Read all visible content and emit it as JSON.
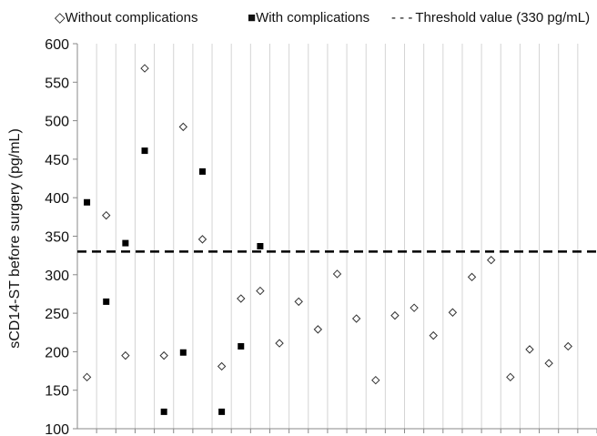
{
  "chart_data": {
    "type": "scatter",
    "title": "",
    "xlabel": "",
    "ylabel": "sCD14-ST before surgery (pg/mL)",
    "ylim": [
      100,
      600
    ],
    "y_ticks": [
      100,
      150,
      200,
      250,
      300,
      350,
      400,
      450,
      500,
      550,
      600
    ],
    "x_slots": 27,
    "grid": "vertical",
    "legend_position": "top",
    "legend": [
      {
        "label": "Without complications",
        "marker": "diamond-open",
        "prefix": "◇"
      },
      {
        "label": "With complications",
        "marker": "square-filled",
        "prefix": "■"
      },
      {
        "label": "Threshold value (330 pg/mL)",
        "marker": "dashed-line",
        "prefix": "- - -"
      }
    ],
    "threshold": {
      "value": 330
    },
    "series": [
      {
        "name": "Without complications",
        "marker": "diamond-open",
        "points": [
          {
            "x": 1,
            "y": 167
          },
          {
            "x": 2,
            "y": 377
          },
          {
            "x": 3,
            "y": 195
          },
          {
            "x": 4,
            "y": 568
          },
          {
            "x": 5,
            "y": 195
          },
          {
            "x": 6,
            "y": 492
          },
          {
            "x": 7,
            "y": 346
          },
          {
            "x": 8,
            "y": 181
          },
          {
            "x": 9,
            "y": 269
          },
          {
            "x": 10,
            "y": 279
          },
          {
            "x": 11,
            "y": 211
          },
          {
            "x": 12,
            "y": 265
          },
          {
            "x": 13,
            "y": 229
          },
          {
            "x": 14,
            "y": 301
          },
          {
            "x": 15,
            "y": 243
          },
          {
            "x": 16,
            "y": 163
          },
          {
            "x": 17,
            "y": 247
          },
          {
            "x": 18,
            "y": 257
          },
          {
            "x": 19,
            "y": 221
          },
          {
            "x": 20,
            "y": 251
          },
          {
            "x": 21,
            "y": 297
          },
          {
            "x": 22,
            "y": 319
          },
          {
            "x": 23,
            "y": 167
          },
          {
            "x": 24,
            "y": 203
          },
          {
            "x": 25,
            "y": 185
          },
          {
            "x": 26,
            "y": 207
          }
        ]
      },
      {
        "name": "With complications",
        "marker": "square-filled",
        "points": [
          {
            "x": 1,
            "y": 394
          },
          {
            "x": 2,
            "y": 265
          },
          {
            "x": 3,
            "y": 341
          },
          {
            "x": 4,
            "y": 461
          },
          {
            "x": 5,
            "y": 122
          },
          {
            "x": 6,
            "y": 199
          },
          {
            "x": 7,
            "y": 434
          },
          {
            "x": 8,
            "y": 122
          },
          {
            "x": 9,
            "y": 207
          },
          {
            "x": 10,
            "y": 337
          }
        ]
      }
    ]
  }
}
